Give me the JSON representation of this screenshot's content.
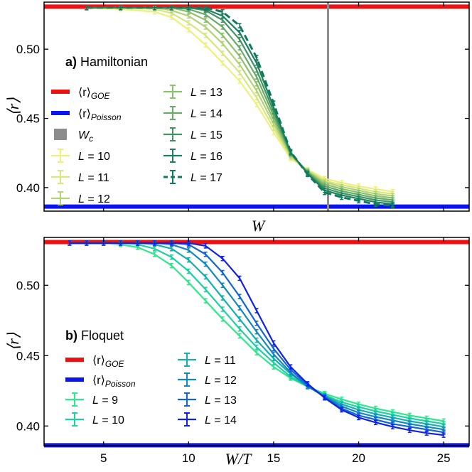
{
  "chart_data": [
    {
      "type": "line",
      "panel_label": "a)",
      "title": "Hamiltonian",
      "xlabel": "W",
      "ylabel": "⟨r⟩",
      "xlim": [
        1.5,
        26.5
      ],
      "ylim": [
        0.383,
        0.534
      ],
      "xticks": [
        5,
        10,
        15,
        20,
        25
      ],
      "show_xtick_labels": false,
      "yticks": [
        0.4,
        0.45,
        0.5
      ],
      "ytick_labels": [
        "0.40",
        "0.45",
        "0.50"
      ],
      "x": [
        4,
        6,
        8,
        9,
        10,
        11,
        12,
        13,
        14,
        15,
        16,
        17,
        18,
        19,
        20,
        21,
        22
      ],
      "reference_lines": [
        {
          "name": "⟨r⟩",
          "sub": "GOE",
          "y": 0.5307,
          "color": "#ee1111",
          "orientation": "horizontal"
        },
        {
          "name": "⟨r⟩",
          "sub": "Poisson",
          "y": 0.3863,
          "color": "#0a14ee",
          "orientation": "horizontal"
        },
        {
          "name": "W",
          "sub": "c",
          "x": 18.2,
          "color": "#8c8c8c",
          "orientation": "vertical"
        }
      ],
      "series": [
        {
          "name": "L = 10",
          "color": "#eef07a",
          "dash": false,
          "values": [
            0.53,
            0.529,
            0.527,
            0.523,
            0.514,
            0.503,
            0.49,
            0.477,
            0.46,
            0.44,
            0.421,
            0.413,
            0.4065,
            0.4035,
            0.401,
            0.399,
            0.397
          ]
        },
        {
          "name": "L = 11",
          "color": "#d6e680",
          "dash": false,
          "values": [
            0.53,
            0.53,
            0.529,
            0.526,
            0.519,
            0.51,
            0.497,
            0.483,
            0.465,
            0.443,
            0.422,
            0.4125,
            0.405,
            0.402,
            0.3995,
            0.397,
            0.3955
          ]
        },
        {
          "name": "L = 12",
          "color": "#b4d377",
          "dash": false,
          "values": [
            0.53,
            0.53,
            0.53,
            0.528,
            0.524,
            0.516,
            0.504,
            0.489,
            0.47,
            0.446,
            0.423,
            0.412,
            0.404,
            0.4005,
            0.398,
            0.3955,
            0.394
          ]
        },
        {
          "name": "L = 13",
          "color": "#8dc06d",
          "dash": false,
          "values": [
            0.53,
            0.53,
            0.53,
            0.53,
            0.527,
            0.521,
            0.51,
            0.495,
            0.475,
            0.449,
            0.424,
            0.4115,
            0.4025,
            0.399,
            0.3965,
            0.394,
            0.3925
          ]
        },
        {
          "name": "L = 14",
          "color": "#66ab66",
          "dash": false,
          "values": [
            0.53,
            0.53,
            0.53,
            0.53,
            0.529,
            0.525,
            0.516,
            0.501,
            0.48,
            0.452,
            0.4245,
            0.411,
            0.401,
            0.3975,
            0.395,
            0.3925,
            0.391
          ]
        },
        {
          "name": "L = 15",
          "color": "#3f9561",
          "dash": false,
          "values": [
            0.53,
            0.53,
            0.53,
            0.53,
            0.53,
            0.528,
            0.521,
            0.507,
            0.485,
            0.455,
            0.425,
            0.4105,
            0.3995,
            0.396,
            0.3935,
            0.391,
            0.3895
          ]
        },
        {
          "name": "L = 16",
          "color": "#1f7f5c",
          "dash": false,
          "values": [
            0.53,
            0.53,
            0.53,
            0.53,
            0.53,
            0.529,
            0.524,
            0.512,
            0.49,
            0.458,
            0.4255,
            0.41,
            0.398,
            0.3945,
            0.392,
            0.3895,
            0.388
          ]
        },
        {
          "name": "L = 17",
          "color": "#0f7a5e",
          "dash": true,
          "values": [
            0.53,
            0.53,
            0.53,
            0.53,
            0.53,
            0.53,
            0.527,
            0.517,
            0.494,
            0.461,
            0.426,
            0.4095,
            0.3965,
            0.393,
            0.3905,
            0.388,
            0.387
          ]
        }
      ]
    },
    {
      "type": "line",
      "panel_label": "b)",
      "title": "Floquet",
      "xlabel": "W/T",
      "ylabel": "⟨r⟩",
      "xlim": [
        1.5,
        26.5
      ],
      "ylim": [
        0.386,
        0.534
      ],
      "xticks": [
        5,
        10,
        15,
        20,
        25
      ],
      "xtick_labels": [
        "5",
        "10",
        "15",
        "20",
        "25"
      ],
      "yticks": [
        0.4,
        0.45,
        0.5
      ],
      "ytick_labels": [
        "0.40",
        "0.45",
        "0.50"
      ],
      "x": [
        3,
        4,
        5,
        6,
        7,
        8,
        9,
        10,
        11,
        12,
        13,
        14,
        15,
        16,
        17,
        18,
        19,
        20,
        21,
        22,
        23,
        24,
        25
      ],
      "reference_lines": [
        {
          "name": "⟨r⟩",
          "sub": "GOE",
          "y": 0.5307,
          "color": "#ee1111",
          "orientation": "horizontal"
        },
        {
          "name": "⟨r⟩",
          "sub": "Poisson",
          "y": 0.3863,
          "color": "#0a14ee",
          "orientation": "horizontal"
        }
      ],
      "series": [
        {
          "name": "L = 9",
          "color": "#2ee88c",
          "values": [
            0.53,
            0.53,
            0.53,
            0.529,
            0.527,
            0.522,
            0.514,
            0.502,
            0.489,
            0.476,
            0.464,
            0.452,
            0.442,
            0.434,
            0.428,
            0.423,
            0.419,
            0.4155,
            0.4125,
            0.41,
            0.4075,
            0.4055,
            0.4035
          ]
        },
        {
          "name": "L = 10",
          "color": "#1fd0a0",
          "values": [
            0.53,
            0.53,
            0.53,
            0.53,
            0.529,
            0.526,
            0.52,
            0.51,
            0.497,
            0.483,
            0.469,
            0.456,
            0.445,
            0.435,
            0.428,
            0.422,
            0.417,
            0.4135,
            0.4105,
            0.408,
            0.4055,
            0.4035,
            0.4015
          ]
        },
        {
          "name": "L = 11",
          "color": "#14b0ae",
          "values": [
            0.53,
            0.53,
            0.53,
            0.53,
            0.53,
            0.529,
            0.526,
            0.518,
            0.506,
            0.491,
            0.476,
            0.461,
            0.448,
            0.437,
            0.428,
            0.4215,
            0.4155,
            0.4115,
            0.4085,
            0.406,
            0.4035,
            0.4015,
            0.3995
          ]
        },
        {
          "name": "L = 12",
          "color": "#1288c0",
          "values": [
            0.53,
            0.53,
            0.53,
            0.53,
            0.53,
            0.53,
            0.529,
            0.525,
            0.515,
            0.5,
            0.484,
            0.467,
            0.451,
            0.438,
            0.428,
            0.421,
            0.414,
            0.4095,
            0.4065,
            0.404,
            0.4015,
            0.3995,
            0.3975
          ]
        },
        {
          "name": "L = 13",
          "color": "#1266d2",
          "values": [
            0.53,
            0.53,
            0.53,
            0.53,
            0.53,
            0.53,
            0.53,
            0.529,
            0.522,
            0.509,
            0.492,
            0.473,
            0.455,
            0.44,
            0.429,
            0.4205,
            0.4125,
            0.4075,
            0.4045,
            0.4015,
            0.3995,
            0.3975,
            0.3955
          ]
        },
        {
          "name": "L = 14",
          "color": "#1122e6",
          "values": [
            0.53,
            0.53,
            0.53,
            0.53,
            0.53,
            0.53,
            0.53,
            0.53,
            0.528,
            0.519,
            0.505,
            0.482,
            0.459,
            0.442,
            0.43,
            0.42,
            0.4115,
            0.406,
            0.4025,
            0.3995,
            0.397,
            0.395,
            0.3935
          ]
        }
      ]
    }
  ]
}
